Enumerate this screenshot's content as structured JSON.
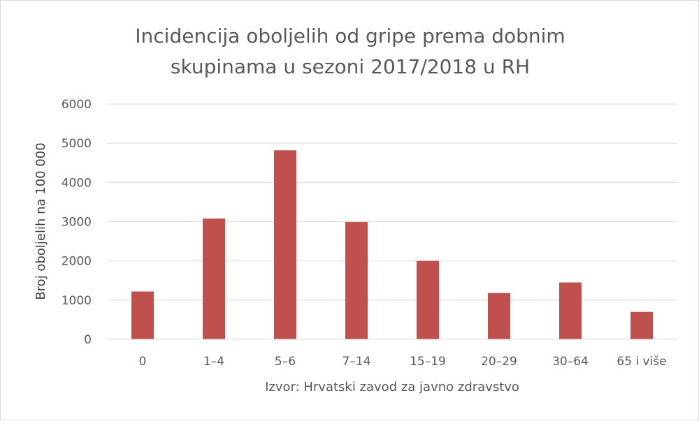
{
  "chart_data": {
    "type": "bar",
    "title_line1": "Incidencija oboljelih od gripe prema dobnim",
    "title_line2": "skupinama u sezoni 2017/2018 u RH",
    "xlabel": "Izvor: Hrvatski zavod za javno zdravstvo",
    "ylabel": "Broj oboljelih na 100 000",
    "categories": [
      "0",
      "1–4",
      "5–6",
      "7–14",
      "15–19",
      "20–29",
      "30–64",
      "65 i više"
    ],
    "values": [
      1220,
      3080,
      4820,
      2990,
      2000,
      1180,
      1450,
      700
    ],
    "ylim": [
      0,
      6000
    ],
    "yticks": [
      "0",
      "1000",
      "2000",
      "3000",
      "4000",
      "5000",
      "6000"
    ],
    "ytick_values": [
      0,
      1000,
      2000,
      3000,
      4000,
      5000,
      6000
    ],
    "grid": true,
    "legend": "none",
    "bar_color": "#c0504d",
    "grid_color": "#d9d9d9"
  }
}
